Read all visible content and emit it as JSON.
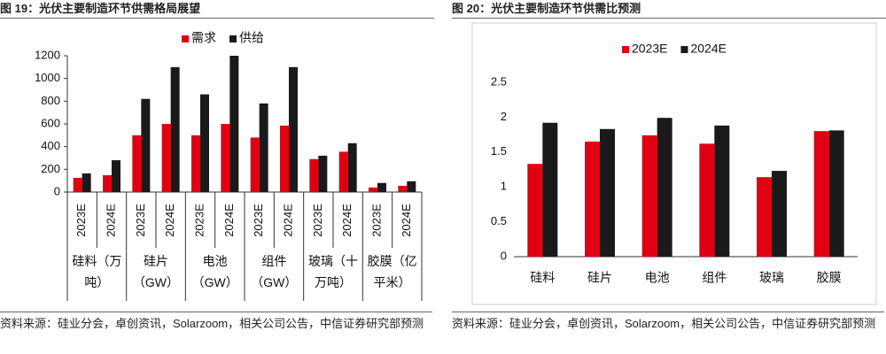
{
  "chart_data": [
    {
      "type": "bar",
      "title": "图 19：光伏主要制造环节供需格局展望",
      "source": "资料来源：硅业分会，卓创资讯，Solarzoom，相关公司公告，中信证券研究部预测",
      "groups": [
        {
          "name": "硅料（万吨）",
          "categories": [
            "2023E",
            "2024E"
          ]
        },
        {
          "name": "硅片（GW）",
          "categories": [
            "2023E",
            "2024E"
          ]
        },
        {
          "name": "电池（GW）",
          "categories": [
            "2023E",
            "2024E"
          ]
        },
        {
          "name": "组件（GW）",
          "categories": [
            "2023E",
            "2024E"
          ]
        },
        {
          "name": "玻璃（十万吨）",
          "categories": [
            "2023E",
            "2024E"
          ]
        },
        {
          "name": "胶膜（亿平米）",
          "categories": [
            "2023E",
            "2024E"
          ]
        }
      ],
      "series": [
        {
          "name": "需求",
          "color": "#e00012",
          "values": [
            125,
            148,
            500,
            600,
            500,
            600,
            480,
            585,
            290,
            355,
            40,
            55
          ]
        },
        {
          "name": "供给",
          "color": "#1a1a1a",
          "values": [
            164,
            280,
            820,
            1100,
            860,
            1200,
            780,
            1100,
            320,
            430,
            80,
            95
          ]
        }
      ],
      "ylim": [
        0,
        1200
      ],
      "yticks": [
        0,
        200,
        400,
        600,
        800,
        1000,
        1200
      ]
    },
    {
      "type": "bar",
      "title": "图 20：光伏主要制造环节供需比预测",
      "source": "资料来源：硅业分会，卓创资讯，Solarzoom，相关公司公告，中信证券研究部预测",
      "categories": [
        "硅料",
        "硅片",
        "电池",
        "组件",
        "玻璃",
        "胶膜"
      ],
      "series": [
        {
          "name": "2023E",
          "color": "#e00012",
          "values": [
            1.33,
            1.65,
            1.74,
            1.62,
            1.14,
            1.8
          ]
        },
        {
          "name": "2024E",
          "color": "#1a1a1a",
          "values": [
            1.92,
            1.83,
            1.99,
            1.88,
            1.23,
            1.81
          ]
        }
      ],
      "ylim": [
        0,
        2.5
      ],
      "yticks": [
        0,
        0.5,
        1,
        1.5,
        2,
        2.5
      ]
    }
  ]
}
